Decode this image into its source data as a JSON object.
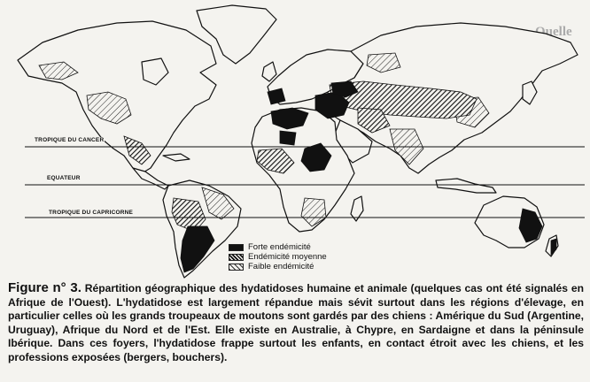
{
  "map": {
    "latitude_lines": {
      "tropic_cancer": "TROPIQUE DU CANCER",
      "equator": "EQUATEUR",
      "tropic_capricorn": "TROPIQUE DU CAPRICORNE"
    },
    "legend": {
      "high": "Forte endémicité",
      "medium": "Endémicité moyenne",
      "low": "Faible endémicité"
    }
  },
  "caption": {
    "figure_label": "Figure n° 3.",
    "text": "Répartition géographique des hydatidoses humaine et animale (quelques cas ont été signalés en Afrique de l'Ouest). L'hydatidose est largement répandue mais sévit surtout dans les régions d'élevage, en particulier celles où les grands troupeaux de moutons sont gardés par des chiens : Amérique du Sud (Argentine, Uruguay), Afrique du Nord et de l'Est. Elle existe en Australie, à Chypre, en Sardaigne et dans la péninsule Ibérique. Dans ces foyers, l'hydatidose frappe surtout les enfants, en contact étroit avec les chiens, et les professions exposées (bergers, bouchers)."
  },
  "background_text": {
    "heading_fragment": "Quelle"
  }
}
